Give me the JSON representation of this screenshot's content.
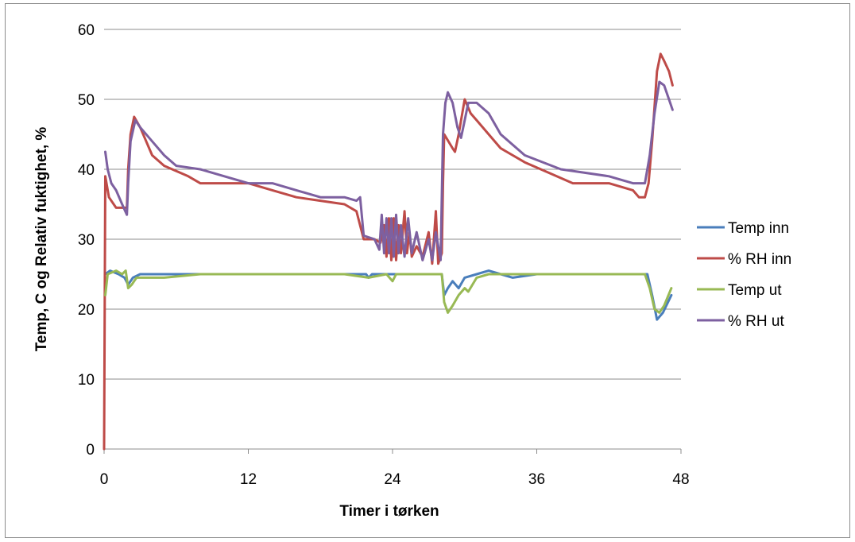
{
  "chart_data": {
    "type": "line",
    "title": "",
    "xlabel": "Timer i tørken",
    "ylabel": "Temp, C og Relativ fuktighet, %",
    "xlim": [
      0,
      48
    ],
    "ylim": [
      0,
      60
    ],
    "xticks": [
      0,
      12,
      24,
      36,
      48
    ],
    "yticks": [
      0,
      10,
      20,
      30,
      40,
      50,
      60
    ],
    "grid": "horizontal",
    "legend_position": "right",
    "series": [
      {
        "name": "Temp inn",
        "color": "#4a7ebb",
        "points": [
          [
            0.1,
            25
          ],
          [
            0.5,
            25.5
          ],
          [
            1.2,
            25
          ],
          [
            1.7,
            24.5
          ],
          [
            2.0,
            23.5
          ],
          [
            2.4,
            24.5
          ],
          [
            3,
            25
          ],
          [
            5,
            25
          ],
          [
            8,
            25
          ],
          [
            12,
            25
          ],
          [
            16,
            25
          ],
          [
            20,
            25
          ],
          [
            21.8,
            25
          ],
          [
            22,
            24.5
          ],
          [
            22.3,
            25
          ],
          [
            24,
            25
          ],
          [
            26,
            25
          ],
          [
            28.1,
            25
          ],
          [
            28.3,
            22
          ],
          [
            28.6,
            23
          ],
          [
            29,
            24
          ],
          [
            29.5,
            23
          ],
          [
            30,
            24.5
          ],
          [
            31,
            25
          ],
          [
            32,
            25.5
          ],
          [
            33,
            25
          ],
          [
            34,
            24.5
          ],
          [
            36,
            25
          ],
          [
            40,
            25
          ],
          [
            42,
            25
          ],
          [
            44,
            25
          ],
          [
            45.2,
            25
          ],
          [
            45.6,
            22
          ],
          [
            46,
            18.5
          ],
          [
            46.5,
            19.5
          ],
          [
            47.2,
            22
          ]
        ]
      },
      {
        "name": "% RH inn",
        "color": "#be4b48",
        "points": [
          [
            0.0,
            0
          ],
          [
            0.1,
            39
          ],
          [
            0.4,
            36
          ],
          [
            1.0,
            34.5
          ],
          [
            1.9,
            34.5
          ],
          [
            2.0,
            40
          ],
          [
            2.2,
            45
          ],
          [
            2.5,
            47.5
          ],
          [
            3,
            46
          ],
          [
            4,
            42
          ],
          [
            5,
            40.5
          ],
          [
            7,
            39
          ],
          [
            8,
            38
          ],
          [
            12,
            38
          ],
          [
            14,
            37
          ],
          [
            16,
            36
          ],
          [
            18,
            35.5
          ],
          [
            20,
            35
          ],
          [
            21,
            34
          ],
          [
            21.6,
            30
          ],
          [
            22.5,
            30
          ],
          [
            23,
            29.5
          ],
          [
            23.3,
            32
          ],
          [
            23.5,
            27.5
          ],
          [
            23.7,
            33
          ],
          [
            23.9,
            27
          ],
          [
            24.1,
            33
          ],
          [
            24.3,
            27
          ],
          [
            24.5,
            32
          ],
          [
            24.7,
            28
          ],
          [
            25,
            34
          ],
          [
            25.2,
            28
          ],
          [
            25.4,
            31
          ],
          [
            25.6,
            27.5
          ],
          [
            26,
            29
          ],
          [
            26.5,
            27.5
          ],
          [
            27,
            31
          ],
          [
            27.3,
            26.5
          ],
          [
            27.6,
            34
          ],
          [
            27.8,
            26.5
          ],
          [
            28.1,
            28
          ],
          [
            28.2,
            38
          ],
          [
            28.3,
            45
          ],
          [
            29,
            43
          ],
          [
            29.2,
            42.5
          ],
          [
            29.5,
            45
          ],
          [
            30,
            50
          ],
          [
            30.5,
            48
          ],
          [
            31,
            47
          ],
          [
            32,
            45
          ],
          [
            33,
            43
          ],
          [
            35,
            41
          ],
          [
            37,
            39.5
          ],
          [
            39,
            38
          ],
          [
            42,
            38
          ],
          [
            44,
            37
          ],
          [
            44.5,
            36
          ],
          [
            45.0,
            36
          ],
          [
            45.3,
            38
          ],
          [
            45.6,
            44
          ],
          [
            46,
            54
          ],
          [
            46.3,
            56.5
          ],
          [
            46.6,
            55.5
          ],
          [
            47.0,
            54
          ],
          [
            47.3,
            52
          ]
        ]
      },
      {
        "name": "Temp ut",
        "color": "#98b954",
        "points": [
          [
            0.1,
            22
          ],
          [
            0.3,
            25
          ],
          [
            1.0,
            25.5
          ],
          [
            1.5,
            25
          ],
          [
            1.8,
            25.5
          ],
          [
            2.0,
            23
          ],
          [
            2.3,
            23.5
          ],
          [
            2.7,
            24.5
          ],
          [
            3.5,
            24.5
          ],
          [
            5,
            24.5
          ],
          [
            8,
            25
          ],
          [
            12,
            25
          ],
          [
            16,
            25
          ],
          [
            20,
            25
          ],
          [
            22,
            24.5
          ],
          [
            23.5,
            25
          ],
          [
            24,
            24
          ],
          [
            24.3,
            25
          ],
          [
            26,
            25
          ],
          [
            28.1,
            25
          ],
          [
            28.3,
            21
          ],
          [
            28.6,
            19.5
          ],
          [
            29,
            20.5
          ],
          [
            29.5,
            22
          ],
          [
            30,
            23
          ],
          [
            30.3,
            22.5
          ],
          [
            31,
            24.5
          ],
          [
            32,
            25
          ],
          [
            36,
            25
          ],
          [
            40,
            25
          ],
          [
            42,
            25
          ],
          [
            44,
            25
          ],
          [
            45,
            25
          ],
          [
            45.4,
            23
          ],
          [
            45.8,
            20
          ],
          [
            46.2,
            19.5
          ],
          [
            46.6,
            20.5
          ],
          [
            47.2,
            23
          ]
        ]
      },
      {
        "name": "% RH ut",
        "color": "#7d60a0",
        "points": [
          [
            0.1,
            42.5
          ],
          [
            0.3,
            40
          ],
          [
            0.6,
            38
          ],
          [
            1.0,
            37
          ],
          [
            1.5,
            35
          ],
          [
            1.9,
            33.5
          ],
          [
            2.0,
            38
          ],
          [
            2.2,
            44
          ],
          [
            2.6,
            47
          ],
          [
            3,
            46
          ],
          [
            4,
            44
          ],
          [
            5,
            42
          ],
          [
            6,
            40.5
          ],
          [
            8,
            40
          ],
          [
            10,
            39
          ],
          [
            12,
            38
          ],
          [
            14,
            38
          ],
          [
            16,
            37
          ],
          [
            18,
            36
          ],
          [
            20,
            36
          ],
          [
            21.0,
            35.5
          ],
          [
            21.3,
            36
          ],
          [
            21.6,
            30.5
          ],
          [
            22.5,
            30
          ],
          [
            22.9,
            28.5
          ],
          [
            23.1,
            33.5
          ],
          [
            23.3,
            28
          ],
          [
            23.5,
            33
          ],
          [
            23.7,
            28
          ],
          [
            23.9,
            33
          ],
          [
            24.1,
            27.5
          ],
          [
            24.3,
            33.5
          ],
          [
            24.5,
            28
          ],
          [
            24.7,
            32
          ],
          [
            25.0,
            27.5
          ],
          [
            25.3,
            33
          ],
          [
            25.6,
            28
          ],
          [
            26.0,
            31
          ],
          [
            26.5,
            27
          ],
          [
            27.0,
            30
          ],
          [
            27.3,
            27
          ],
          [
            27.6,
            31
          ],
          [
            28.0,
            27
          ],
          [
            28.2,
            45
          ],
          [
            28.4,
            49.5
          ],
          [
            28.6,
            51
          ],
          [
            29.0,
            49.5
          ],
          [
            29.4,
            46
          ],
          [
            29.7,
            44.5
          ],
          [
            30.0,
            47
          ],
          [
            30.3,
            49.5
          ],
          [
            31,
            49.5
          ],
          [
            32,
            48
          ],
          [
            33,
            45
          ],
          [
            35,
            42
          ],
          [
            38,
            40
          ],
          [
            40,
            39.5
          ],
          [
            42,
            39
          ],
          [
            44,
            38
          ],
          [
            45.0,
            38
          ],
          [
            45.4,
            42
          ],
          [
            45.8,
            48
          ],
          [
            46.2,
            52.5
          ],
          [
            46.6,
            52
          ],
          [
            47.0,
            50
          ],
          [
            47.3,
            48.5
          ]
        ]
      }
    ]
  }
}
